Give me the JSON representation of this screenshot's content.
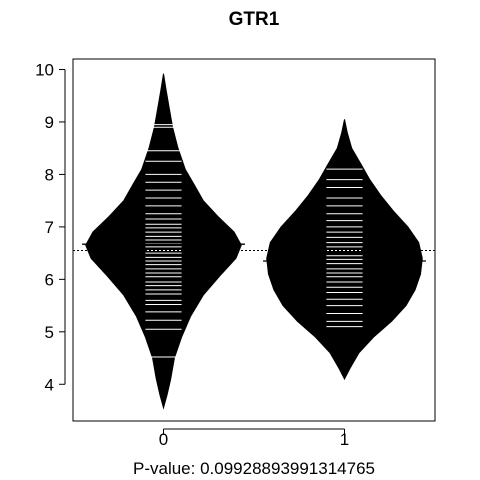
{
  "chart_data": {
    "type": "beanplot",
    "title": "GTR1",
    "xlabel": "P-value: 0.09928893991314765",
    "ylabel": "",
    "ylim": [
      3.3,
      10.2
    ],
    "xlim": [
      -0.5,
      1.5
    ],
    "yticks": [
      "4",
      "5",
      "6",
      "7",
      "8",
      "9",
      "10"
    ],
    "categories": [
      "0",
      "1"
    ],
    "overall_mean": 6.55,
    "reference_line_style": "dotted",
    "bean_color": "#000000",
    "line_color": "#ffffff",
    "beans": [
      {
        "group": "0",
        "mean": 6.67,
        "density": [
          [
            3.55,
            0.0
          ],
          [
            3.8,
            0.02
          ],
          [
            4.1,
            0.04
          ],
          [
            4.5,
            0.06
          ],
          [
            4.9,
            0.1
          ],
          [
            5.3,
            0.15
          ],
          [
            5.7,
            0.22
          ],
          [
            6.1,
            0.32
          ],
          [
            6.4,
            0.4
          ],
          [
            6.65,
            0.43
          ],
          [
            6.9,
            0.39
          ],
          [
            7.2,
            0.3
          ],
          [
            7.5,
            0.22
          ],
          [
            7.8,
            0.17
          ],
          [
            8.1,
            0.12
          ],
          [
            8.5,
            0.08
          ],
          [
            8.9,
            0.05
          ],
          [
            9.3,
            0.03
          ],
          [
            9.6,
            0.015
          ],
          [
            9.92,
            0.0
          ]
        ],
        "observations": [
          4.52,
          5.05,
          5.22,
          5.38,
          5.52,
          5.6,
          5.72,
          5.8,
          5.88,
          5.95,
          6.05,
          6.12,
          6.2,
          6.28,
          6.35,
          6.42,
          6.5,
          6.55,
          6.62,
          6.68,
          6.75,
          6.82,
          6.9,
          6.98,
          7.05,
          7.15,
          7.25,
          7.4,
          7.55,
          7.7,
          7.85,
          8.0,
          8.25,
          8.45,
          8.9,
          8.95
        ]
      },
      {
        "group": "1",
        "mean": 6.35,
        "density": [
          [
            4.1,
            0.0
          ],
          [
            4.3,
            0.03
          ],
          [
            4.6,
            0.08
          ],
          [
            4.9,
            0.16
          ],
          [
            5.2,
            0.26
          ],
          [
            5.5,
            0.34
          ],
          [
            5.8,
            0.39
          ],
          [
            6.1,
            0.42
          ],
          [
            6.4,
            0.43
          ],
          [
            6.7,
            0.41
          ],
          [
            7.0,
            0.35
          ],
          [
            7.3,
            0.27
          ],
          [
            7.6,
            0.2
          ],
          [
            7.9,
            0.14
          ],
          [
            8.2,
            0.09
          ],
          [
            8.5,
            0.04
          ],
          [
            8.8,
            0.015
          ],
          [
            9.05,
            0.0
          ]
        ],
        "observations": [
          5.1,
          5.2,
          5.35,
          5.5,
          5.62,
          5.75,
          5.85,
          5.95,
          6.05,
          6.12,
          6.2,
          6.3,
          6.38,
          6.45,
          6.55,
          6.62,
          6.7,
          6.8,
          6.9,
          7.0,
          7.12,
          7.25,
          7.4,
          7.55,
          7.75,
          7.9,
          8.1
        ]
      }
    ]
  }
}
